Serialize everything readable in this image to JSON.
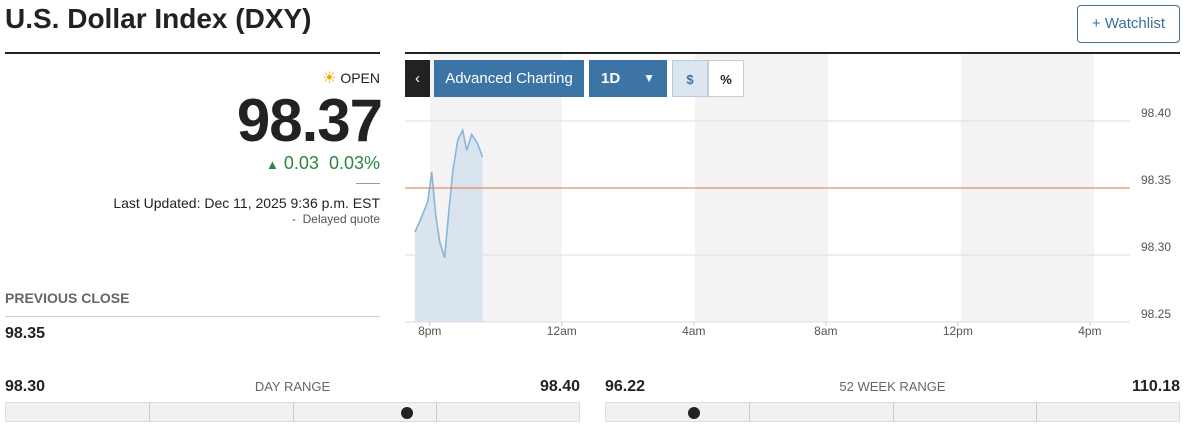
{
  "header": {
    "title": "U.S. Dollar Index (DXY)",
    "watchlist": "Watchlist"
  },
  "quote": {
    "status": "OPEN",
    "price": 98.37,
    "change": 0.03,
    "change_percent": {
      "value": 0.03,
      "label": "0.03%"
    },
    "last_updated": "Last Updated: Dec 11, 2025 9:36 p.m. EST",
    "delay": "Delayed quote"
  },
  "previous_close": {
    "label": "PREVIOUS CLOSE",
    "value": 98.35
  },
  "day_range": {
    "label": "DAY RANGE",
    "low": {
      "value": 98.3,
      "label": "98.30"
    },
    "high": {
      "value": 98.4,
      "label": "98.40"
    }
  },
  "week52_range": {
    "label": "52 WEEK RANGE",
    "low": 96.22,
    "high": 110.18
  },
  "toolbar": {
    "advanced": "Advanced Charting",
    "period": "1D",
    "dollar": "$",
    "percent": "%"
  },
  "chart_data": {
    "type": "line",
    "color": "#8ab4dc",
    "x": [
      -0.45,
      -0.27,
      -0.06,
      0.06,
      0.18,
      0.3,
      0.45,
      0.58,
      0.7,
      0.85,
      1.0,
      1.12,
      1.27,
      1.45,
      1.6
    ],
    "values": [
      98.317,
      98.327,
      98.34,
      98.362,
      98.33,
      98.31,
      98.298,
      98.333,
      98.363,
      98.386,
      98.393,
      98.378,
      98.39,
      98.383,
      98.373
    ],
    "xlim": [
      -0.75,
      21.125
    ],
    "xticks": [
      {
        "value": 0,
        "label": "8pm"
      },
      {
        "value": 4,
        "label": "12am"
      },
      {
        "value": 8,
        "label": "4am"
      },
      {
        "value": 12,
        "label": "8am"
      },
      {
        "value": 16,
        "label": "12pm"
      },
      {
        "value": 20,
        "label": "4pm"
      }
    ],
    "ylim": [
      98.25,
      98.45
    ],
    "yticks": [
      {
        "value": 98.25,
        "label": "98.25"
      },
      {
        "value": 98.3,
        "label": "98.30"
      },
      {
        "value": 98.35,
        "label": "98.35"
      },
      {
        "value": 98.4,
        "label": "98.40"
      }
    ],
    "grid": true,
    "reference_color": "#e07b39"
  }
}
